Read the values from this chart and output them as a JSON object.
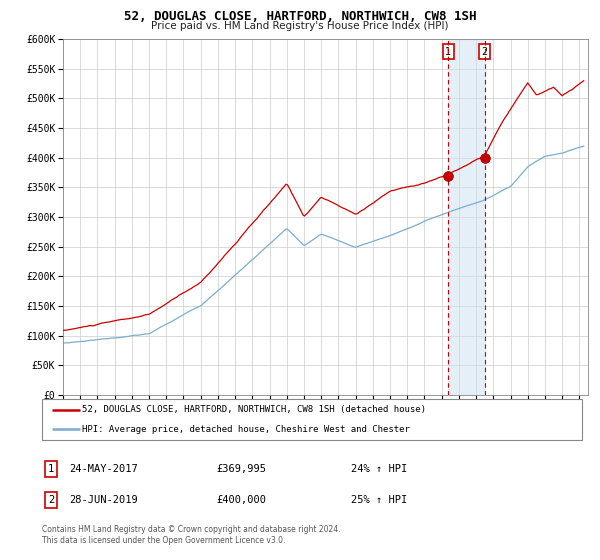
{
  "title": "52, DOUGLAS CLOSE, HARTFORD, NORTHWICH, CW8 1SH",
  "subtitle": "Price paid vs. HM Land Registry's House Price Index (HPI)",
  "ylim": [
    0,
    600000
  ],
  "yticks": [
    0,
    50000,
    100000,
    150000,
    200000,
    250000,
    300000,
    350000,
    400000,
    450000,
    500000,
    550000,
    600000
  ],
  "red_color": "#cc0000",
  "blue_color": "#7aadcf",
  "grid_color": "#cccccc",
  "transaction1": {
    "date_num": 2017.39,
    "price": 369995
  },
  "transaction2": {
    "date_num": 2019.49,
    "price": 400000
  },
  "legend_line1": "52, DOUGLAS CLOSE, HARTFORD, NORTHWICH, CW8 1SH (detached house)",
  "legend_line2": "HPI: Average price, detached house, Cheshire West and Chester",
  "footnote": "Contains HM Land Registry data © Crown copyright and database right 2024.\nThis data is licensed under the Open Government Licence v3.0.",
  "table": [
    {
      "num": "1",
      "date": "24-MAY-2017",
      "price": "£369,995",
      "change": "24% ↑ HPI"
    },
    {
      "num": "2",
      "date": "28-JUN-2019",
      "price": "£400,000",
      "change": "25% ↑ HPI"
    }
  ]
}
